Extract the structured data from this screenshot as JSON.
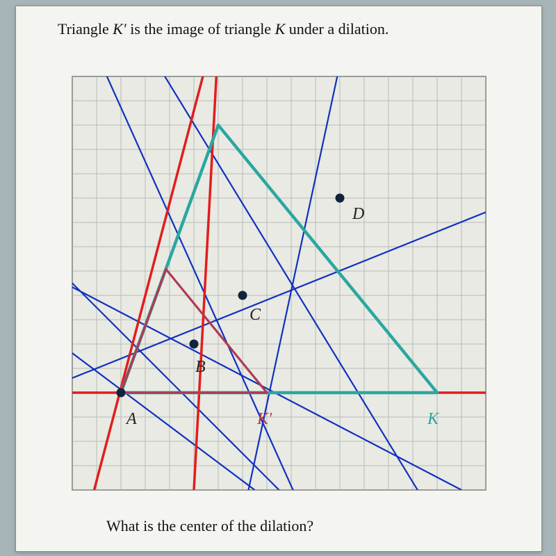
{
  "title_parts": {
    "p1": "Triangle ",
    "k_prime": "K′",
    "p2": " is the image of triangle ",
    "k": "K",
    "p3": " under a dilation."
  },
  "footer_question": "What is the center of the dilation?",
  "colors": {
    "paper": "#f4f5f0",
    "grid_bg": "#e8eae3",
    "grid_line": "#b7bcb7",
    "grid_border": "#9aa19a",
    "triangle_K": "#2aa7a0",
    "triangle_Kp": "#b03a52",
    "red_lines": "#e21d1d",
    "blue_lines": "#1030c0",
    "point_fill": "#12233e",
    "label_text": "#222",
    "label_K": "#2aa7a0",
    "label_Kp": "#b03a52"
  },
  "grid": {
    "cell": 35,
    "cols": 17,
    "rows": 17,
    "line_w": 1
  },
  "origin_cell": {
    "col": 0,
    "row": 17
  },
  "points": {
    "A": {
      "cell": [
        2,
        13
      ],
      "label_offset": [
        8,
        35
      ]
    },
    "B": {
      "cell": [
        5,
        11
      ],
      "label_offset": [
        2,
        30
      ]
    },
    "C": {
      "cell": [
        7,
        9
      ],
      "label_offset": [
        10,
        25
      ]
    },
    "D": {
      "cell": [
        11,
        5
      ],
      "label_offset": [
        18,
        20
      ]
    }
  },
  "triangle_K": {
    "verts": [
      [
        2,
        13
      ],
      [
        15,
        13
      ],
      [
        6,
        2
      ]
    ],
    "stroke_w": 4.5
  },
  "triangle_Kp": {
    "verts": [
      [
        2,
        13
      ],
      [
        8,
        13
      ],
      [
        3.85,
        7.92
      ]
    ],
    "stroke_w": 3.2
  },
  "red_lines": {
    "stroke_w": 3.5,
    "segments": [
      [
        [
          0,
          13
        ],
        [
          17,
          13
        ]
      ],
      [
        [
          5,
          17
        ],
        [
          5.95,
          -0.5
        ]
      ],
      [
        [
          0.9,
          17
        ],
        [
          5.5,
          -0.5
        ]
      ]
    ]
  },
  "blue_lines": {
    "stroke_w": 2.2,
    "segments": [
      [
        [
          -0.5,
          8
        ],
        [
          8.5,
          17
        ]
      ],
      [
        [
          -0.5,
          11
        ],
        [
          7.5,
          17
        ]
      ],
      [
        [
          -0.5,
          12.6
        ],
        [
          17.2,
          5.5
        ]
      ],
      [
        [
          -0.5,
          8.4
        ],
        [
          16,
          17
        ]
      ],
      [
        [
          1.2,
          -0.5
        ],
        [
          9.3,
          17.5
        ]
      ],
      [
        [
          3.5,
          -0.5
        ],
        [
          14.5,
          17.5
        ]
      ],
      [
        [
          11,
          -0.5
        ],
        [
          7.2,
          17.2
        ]
      ]
    ]
  },
  "point_radius": 6.5,
  "labels_extra": {
    "K": {
      "cell": [
        14.6,
        14.0
      ],
      "color": "#2aa7a0"
    },
    "Kp": {
      "cell": [
        7.6,
        14.0
      ],
      "color": "#b03a52",
      "text": "K′"
    }
  },
  "label_fontsize": 24
}
